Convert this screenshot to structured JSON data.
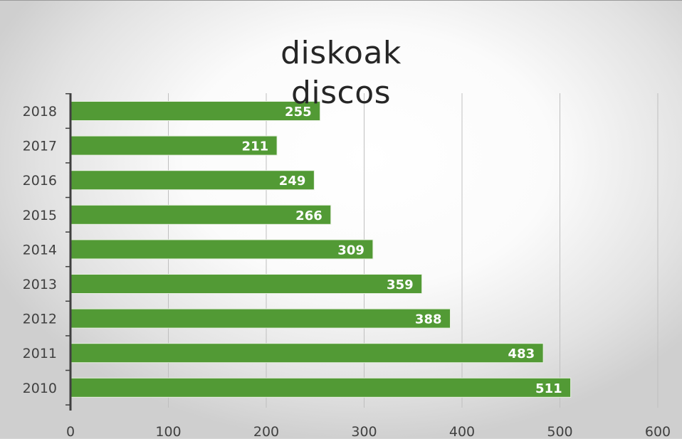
{
  "chart_data": {
    "type": "bar",
    "orientation": "horizontal",
    "title_lines": [
      "diskoak",
      "discos"
    ],
    "categories": [
      "2018",
      "2017",
      "2016",
      "2015",
      "2014",
      "2013",
      "2012",
      "2011",
      "2010"
    ],
    "values": [
      255,
      211,
      249,
      266,
      309,
      359,
      388,
      483,
      511
    ],
    "xlim": [
      0,
      600
    ],
    "x_ticks": [
      "0",
      "100",
      "200",
      "300",
      "400",
      "500",
      "600"
    ],
    "grid": "vertical",
    "bar_color": "#529a35",
    "label_color": "#ffffff",
    "data_labels": [
      "255",
      "211",
      "249",
      "266",
      "309",
      "359",
      "388",
      "483",
      "511"
    ]
  }
}
